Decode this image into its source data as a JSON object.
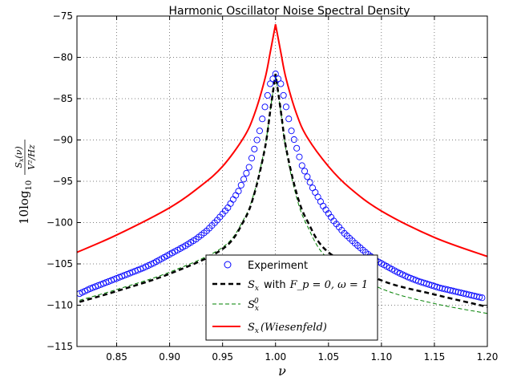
{
  "chart_data": {
    "type": "line",
    "title": "Harmonic Oscillator Noise Spectral Density",
    "xlabel": "ν",
    "ylabel": {
      "prefix": "10log",
      "sub": "10",
      "numerator": "S",
      "numerator_sub": "x",
      "numerator_arg": "(ν)",
      "denominator": "V²/Hz"
    },
    "xlim": [
      0.8125,
      1.2
    ],
    "ylim": [
      -115,
      -75
    ],
    "xticks": [
      0.85,
      0.9,
      0.95,
      1.0,
      1.05,
      1.1,
      1.15,
      1.2
    ],
    "xtick_labels": [
      "0.85",
      "0.90",
      "0.95",
      "1.00",
      "1.05",
      "1.10",
      "1.15",
      "1.20"
    ],
    "yticks": [
      -115,
      -110,
      -105,
      -100,
      -95,
      -90,
      -85,
      -80,
      -75
    ],
    "ytick_labels": [
      "−115",
      "−110",
      "−105",
      "−100",
      "−95",
      "−90",
      "−85",
      "−80",
      "−75"
    ],
    "grid": true,
    "legend_position": "bottom-center",
    "series": [
      {
        "name": "Experiment",
        "legend_label": "Experiment",
        "style": "markers",
        "marker": "open-circle",
        "color": "#0000ff",
        "x": [
          0.815,
          0.825,
          0.835,
          0.845,
          0.855,
          0.865,
          0.875,
          0.885,
          0.895,
          0.905,
          0.915,
          0.925,
          0.935,
          0.945,
          0.955,
          0.965,
          0.975,
          0.985,
          0.99,
          0.995,
          1.0,
          1.005,
          1.01,
          1.015,
          1.025,
          1.035,
          1.045,
          1.055,
          1.065,
          1.075,
          1.085,
          1.095,
          1.105,
          1.115,
          1.125,
          1.135,
          1.145,
          1.155,
          1.165,
          1.175,
          1.185,
          1.195
        ],
        "y": [
          -108.6,
          -108.0,
          -107.5,
          -107.0,
          -106.5,
          -106.0,
          -105.5,
          -104.9,
          -104.2,
          -103.5,
          -102.8,
          -102.0,
          -101.0,
          -99.7,
          -98.2,
          -96.2,
          -93.3,
          -88.9,
          -86.0,
          -83.2,
          -82.0,
          -83.2,
          -86.0,
          -88.9,
          -93.1,
          -95.8,
          -98.0,
          -99.8,
          -101.3,
          -102.5,
          -103.6,
          -104.6,
          -105.3,
          -106.0,
          -106.6,
          -107.1,
          -107.5,
          -107.9,
          -108.2,
          -108.5,
          -108.8,
          -109.1
        ]
      },
      {
        "name": "Sx Fp0",
        "legend_label": "with",
        "legend_params": "F_p = 0,  ω = 1",
        "style": "dashed",
        "color": "#000000",
        "x": [
          0.815,
          0.85,
          0.9,
          0.95,
          0.97,
          0.98,
          0.99,
          0.995,
          1.0,
          1.005,
          1.01,
          1.02,
          1.03,
          1.05,
          1.1,
          1.15,
          1.2
        ],
        "y": [
          -109.6,
          -108.3,
          -106.2,
          -103.2,
          -99.8,
          -96.5,
          -91.0,
          -86.5,
          -82.0,
          -86.5,
          -91.0,
          -96.5,
          -99.8,
          -103.6,
          -107.0,
          -108.7,
          -110.2
        ]
      },
      {
        "name": "Sx0",
        "legend_label": "S_x^0",
        "style": "dashed",
        "color": "#008000",
        "x": [
          0.815,
          0.85,
          0.9,
          0.95,
          0.97,
          0.98,
          0.99,
          0.995,
          1.0,
          1.005,
          1.01,
          1.02,
          1.03,
          1.05,
          1.1,
          1.15,
          1.2
        ],
        "y": [
          -109.4,
          -108.1,
          -106.0,
          -103.0,
          -99.6,
          -96.3,
          -90.8,
          -86.4,
          -82.0,
          -86.6,
          -91.3,
          -97.0,
          -100.4,
          -104.4,
          -108.0,
          -109.8,
          -111.0
        ]
      },
      {
        "name": "Sx Wiesenfeld",
        "legend_label": "(Wiesenfeld)",
        "style": "solid",
        "color": "#ff0000",
        "x": [
          0.8125,
          0.85,
          0.9,
          0.93,
          0.95,
          0.97,
          0.98,
          0.99,
          0.995,
          1.0,
          1.005,
          1.01,
          1.02,
          1.03,
          1.05,
          1.07,
          1.1,
          1.15,
          1.2
        ],
        "y": [
          -103.6,
          -101.5,
          -98.2,
          -95.5,
          -93.2,
          -89.7,
          -86.9,
          -82.6,
          -79.4,
          -76.0,
          -79.4,
          -82.6,
          -86.9,
          -89.7,
          -93.2,
          -95.8,
          -98.6,
          -101.8,
          -104.1
        ]
      }
    ]
  }
}
